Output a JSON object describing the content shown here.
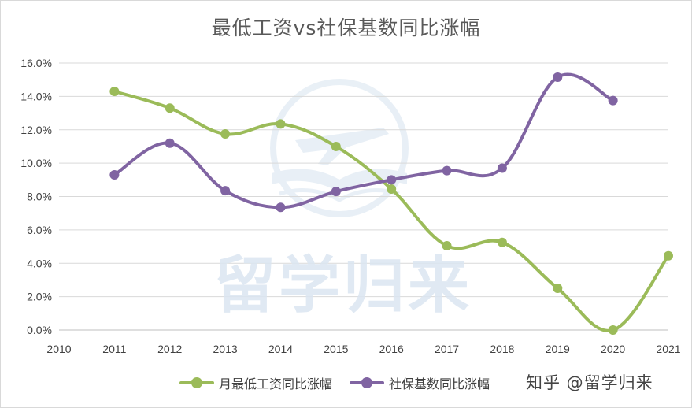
{
  "chart_data": {
    "type": "line",
    "title": "最低工资vs社保基数同比涨幅",
    "x": [
      "2010",
      "2011",
      "2012",
      "2013",
      "2014",
      "2015",
      "2016",
      "2017",
      "2018",
      "2019",
      "2020",
      "2021"
    ],
    "y_ticks": [
      "0.0%",
      "2.0%",
      "4.0%",
      "6.0%",
      "8.0%",
      "10.0%",
      "12.0%",
      "14.0%",
      "16.0%"
    ],
    "ylim": [
      0,
      16
    ],
    "y_unit": "%",
    "grid": true,
    "legend_position": "bottom",
    "series": [
      {
        "name": "月最低工资同比涨幅",
        "color": "#9bbb59",
        "points": [
          {
            "x": "2011",
            "y": 14.3
          },
          {
            "x": "2012",
            "y": 13.3
          },
          {
            "x": "2013",
            "y": 11.75
          },
          {
            "x": "2014",
            "y": 12.35
          },
          {
            "x": "2015",
            "y": 11.0
          },
          {
            "x": "2016",
            "y": 8.45
          },
          {
            "x": "2017",
            "y": 5.05
          },
          {
            "x": "2018",
            "y": 5.25
          },
          {
            "x": "2019",
            "y": 2.5
          },
          {
            "x": "2020",
            "y": 0.0
          },
          {
            "x": "2021",
            "y": 4.45
          }
        ]
      },
      {
        "name": "社保基数同比涨幅",
        "color": "#8064a2",
        "points": [
          {
            "x": "2011",
            "y": 9.3
          },
          {
            "x": "2012",
            "y": 11.2
          },
          {
            "x": "2013",
            "y": 8.35
          },
          {
            "x": "2014",
            "y": 7.35
          },
          {
            "x": "2015",
            "y": 8.3
          },
          {
            "x": "2016",
            "y": 9.0
          },
          {
            "x": "2017",
            "y": 9.55
          },
          {
            "x": "2018",
            "y": 9.7
          },
          {
            "x": "2019",
            "y": 15.15
          },
          {
            "x": "2020",
            "y": 13.75
          }
        ]
      }
    ]
  },
  "source_text": "知乎 @留学归来",
  "watermark": {
    "text": "留学归来",
    "color": "#dbe6f1",
    "icon": "airplane-book-logo"
  }
}
